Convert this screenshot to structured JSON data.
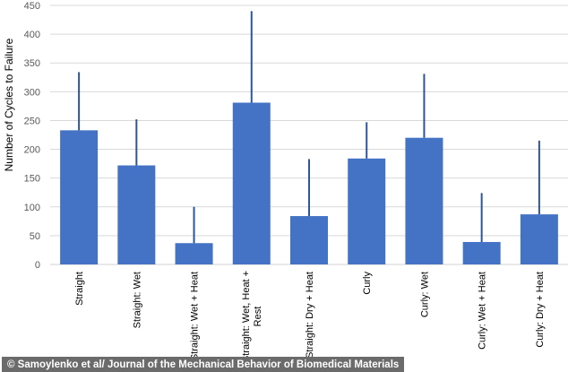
{
  "chart_data": {
    "type": "bar",
    "title": "",
    "xlabel": "",
    "ylabel": "Number of Cycles to Failure",
    "ylim": [
      0,
      450
    ],
    "yticks": [
      0,
      50,
      100,
      150,
      200,
      250,
      300,
      350,
      400,
      450
    ],
    "grid": true,
    "legend": "none",
    "categories": [
      [
        "Straight"
      ],
      [
        "Straight: Wet"
      ],
      [
        "Straight: Wet + Heat"
      ],
      [
        "Straight: Wet, Heat +",
        "Rest"
      ],
      [
        "Straight: Dry + Heat"
      ],
      [
        "Curly"
      ],
      [
        "Curly: Wet"
      ],
      [
        "Curly: Wet + Heat"
      ],
      [
        "Curly: Dry + Heat"
      ]
    ],
    "values": [
      233,
      172,
      37,
      281,
      84,
      184,
      220,
      39,
      87
    ],
    "error_bars_upper": [
      101,
      80,
      63,
      159,
      99,
      63,
      111,
      85,
      128
    ],
    "bar_color": "#4472c4",
    "error_color": "#2e5597"
  },
  "credit": "© Samoylenko et al/ Journal of the Mechanical Behavior of Biomedical Materials"
}
